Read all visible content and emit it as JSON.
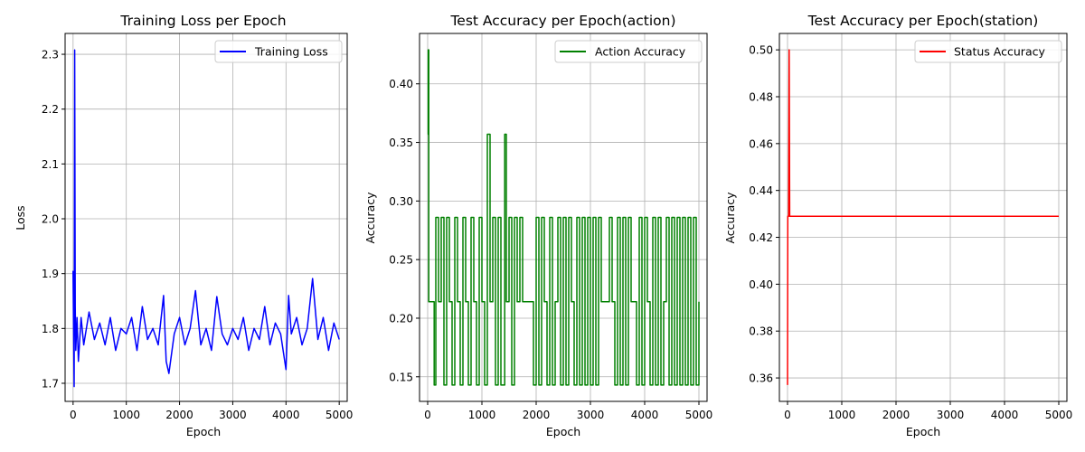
{
  "chart_data": [
    {
      "id": "loss",
      "type": "line",
      "title": "Training Loss per Epoch",
      "xlabel": "Epoch",
      "ylabel": "Loss",
      "xlim": [
        -150,
        5150
      ],
      "ylim": [
        1.667,
        2.338
      ],
      "xticks": [
        "0",
        "1000",
        "2000",
        "3000",
        "4000",
        "5000"
      ],
      "yticks": [
        "1.7",
        "1.8",
        "1.9",
        "2.0",
        "2.1",
        "2.2",
        "2.3"
      ],
      "grid": true,
      "legend_position": "top-right",
      "series": [
        {
          "name": "Training Loss",
          "color": "#0000ff",
          "points": [
            [
              0,
              1.905
            ],
            [
              10,
              1.8
            ],
            [
              20,
              1.694
            ],
            [
              30,
              2.308
            ],
            [
              40,
              1.84
            ],
            [
              50,
              1.76
            ],
            [
              75,
              1.82
            ],
            [
              100,
              1.74
            ],
            [
              150,
              1.82
            ],
            [
              200,
              1.77
            ],
            [
              300,
              1.83
            ],
            [
              400,
              1.78
            ],
            [
              500,
              1.81
            ],
            [
              600,
              1.77
            ],
            [
              700,
              1.82
            ],
            [
              800,
              1.76
            ],
            [
              900,
              1.8
            ],
            [
              1000,
              1.79
            ],
            [
              1100,
              1.82
            ],
            [
              1200,
              1.76
            ],
            [
              1300,
              1.84
            ],
            [
              1400,
              1.78
            ],
            [
              1500,
              1.8
            ],
            [
              1600,
              1.77
            ],
            [
              1700,
              1.86
            ],
            [
              1750,
              1.74
            ],
            [
              1800,
              1.718
            ],
            [
              1900,
              1.79
            ],
            [
              2000,
              1.82
            ],
            [
              2100,
              1.77
            ],
            [
              2200,
              1.8
            ],
            [
              2300,
              1.869
            ],
            [
              2400,
              1.77
            ],
            [
              2500,
              1.8
            ],
            [
              2600,
              1.76
            ],
            [
              2700,
              1.858
            ],
            [
              2800,
              1.79
            ],
            [
              2900,
              1.77
            ],
            [
              3000,
              1.8
            ],
            [
              3100,
              1.78
            ],
            [
              3200,
              1.82
            ],
            [
              3300,
              1.76
            ],
            [
              3400,
              1.8
            ],
            [
              3500,
              1.78
            ],
            [
              3600,
              1.84
            ],
            [
              3700,
              1.77
            ],
            [
              3800,
              1.81
            ],
            [
              3900,
              1.79
            ],
            [
              4000,
              1.725
            ],
            [
              4050,
              1.86
            ],
            [
              4100,
              1.79
            ],
            [
              4200,
              1.82
            ],
            [
              4300,
              1.77
            ],
            [
              4400,
              1.8
            ],
            [
              4500,
              1.891
            ],
            [
              4600,
              1.78
            ],
            [
              4700,
              1.82
            ],
            [
              4800,
              1.76
            ],
            [
              4900,
              1.81
            ],
            [
              5000,
              1.78
            ]
          ]
        }
      ]
    },
    {
      "id": "action",
      "type": "line",
      "title": "Test Accuracy per Epoch(action)",
      "xlabel": "Epoch",
      "ylabel": "Accuracy",
      "xlim": [
        -150,
        5150
      ],
      "ylim": [
        0.129,
        0.443
      ],
      "xticks": [
        "0",
        "1000",
        "2000",
        "3000",
        "4000",
        "5000"
      ],
      "yticks": [
        "0.15",
        "0.20",
        "0.25",
        "0.30",
        "0.35",
        "0.40"
      ],
      "grid": true,
      "legend_position": "top-right",
      "series": [
        {
          "name": "Action Accuracy",
          "color": "#008000",
          "points": [
            [
              0,
              0.357
            ],
            [
              10,
              0.429
            ],
            [
              20,
              0.214
            ],
            [
              50,
              0.214
            ],
            [
              100,
              0.214
            ],
            [
              120,
              0.143
            ],
            [
              150,
              0.286
            ],
            [
              200,
              0.214
            ],
            [
              250,
              0.286
            ],
            [
              300,
              0.143
            ],
            [
              350,
              0.286
            ],
            [
              400,
              0.214
            ],
            [
              450,
              0.143
            ],
            [
              500,
              0.286
            ],
            [
              550,
              0.214
            ],
            [
              600,
              0.143
            ],
            [
              650,
              0.286
            ],
            [
              700,
              0.214
            ],
            [
              750,
              0.143
            ],
            [
              800,
              0.286
            ],
            [
              850,
              0.214
            ],
            [
              900,
              0.143
            ],
            [
              950,
              0.286
            ],
            [
              1000,
              0.214
            ],
            [
              1050,
              0.143
            ],
            [
              1100,
              0.357
            ],
            [
              1150,
              0.214
            ],
            [
              1200,
              0.286
            ],
            [
              1250,
              0.143
            ],
            [
              1300,
              0.286
            ],
            [
              1350,
              0.143
            ],
            [
              1420,
              0.357
            ],
            [
              1450,
              0.214
            ],
            [
              1500,
              0.286
            ],
            [
              1550,
              0.143
            ],
            [
              1600,
              0.286
            ],
            [
              1650,
              0.214
            ],
            [
              1700,
              0.286
            ],
            [
              1750,
              0.214
            ],
            [
              1800,
              0.214
            ],
            [
              1900,
              0.214
            ],
            [
              1950,
              0.143
            ],
            [
              2000,
              0.286
            ],
            [
              2050,
              0.143
            ],
            [
              2100,
              0.286
            ],
            [
              2150,
              0.214
            ],
            [
              2200,
              0.143
            ],
            [
              2250,
              0.286
            ],
            [
              2300,
              0.143
            ],
            [
              2350,
              0.214
            ],
            [
              2400,
              0.286
            ],
            [
              2450,
              0.143
            ],
            [
              2500,
              0.286
            ],
            [
              2550,
              0.143
            ],
            [
              2600,
              0.286
            ],
            [
              2650,
              0.214
            ],
            [
              2700,
              0.143
            ],
            [
              2750,
              0.286
            ],
            [
              2800,
              0.143
            ],
            [
              2850,
              0.286
            ],
            [
              2900,
              0.143
            ],
            [
              2950,
              0.286
            ],
            [
              3000,
              0.143
            ],
            [
              3050,
              0.286
            ],
            [
              3100,
              0.143
            ],
            [
              3150,
              0.286
            ],
            [
              3200,
              0.214
            ],
            [
              3250,
              0.214
            ],
            [
              3300,
              0.214
            ],
            [
              3350,
              0.286
            ],
            [
              3400,
              0.214
            ],
            [
              3450,
              0.143
            ],
            [
              3500,
              0.286
            ],
            [
              3550,
              0.143
            ],
            [
              3600,
              0.286
            ],
            [
              3650,
              0.143
            ],
            [
              3700,
              0.286
            ],
            [
              3750,
              0.214
            ],
            [
              3800,
              0.214
            ],
            [
              3850,
              0.143
            ],
            [
              3900,
              0.286
            ],
            [
              3950,
              0.143
            ],
            [
              4000,
              0.286
            ],
            [
              4050,
              0.214
            ],
            [
              4100,
              0.143
            ],
            [
              4150,
              0.286
            ],
            [
              4200,
              0.143
            ],
            [
              4250,
              0.286
            ],
            [
              4300,
              0.143
            ],
            [
              4350,
              0.214
            ],
            [
              4400,
              0.286
            ],
            [
              4450,
              0.143
            ],
            [
              4500,
              0.286
            ],
            [
              4550,
              0.143
            ],
            [
              4600,
              0.286
            ],
            [
              4650,
              0.143
            ],
            [
              4700,
              0.286
            ],
            [
              4750,
              0.143
            ],
            [
              4800,
              0.286
            ],
            [
              4850,
              0.143
            ],
            [
              4900,
              0.286
            ],
            [
              4950,
              0.143
            ],
            [
              5000,
              0.214
            ]
          ]
        }
      ]
    },
    {
      "id": "station",
      "type": "line",
      "title": "Test Accuracy per Epoch(station)",
      "xlabel": "Epoch",
      "ylabel": "Accuracy",
      "xlim": [
        -150,
        5150
      ],
      "ylim": [
        0.35,
        0.507
      ],
      "xticks": [
        "0",
        "1000",
        "2000",
        "3000",
        "4000",
        "5000"
      ],
      "yticks": [
        "0.36",
        "0.38",
        "0.40",
        "0.42",
        "0.44",
        "0.46",
        "0.48",
        "0.50"
      ],
      "grid": true,
      "legend_position": "top-right",
      "series": [
        {
          "name": "Status Accuracy",
          "color": "#ff0000",
          "points": [
            [
              0,
              0.357
            ],
            [
              5,
              0.429
            ],
            [
              20,
              0.429
            ],
            [
              30,
              0.5
            ],
            [
              40,
              0.429
            ],
            [
              100,
              0.429
            ],
            [
              5000,
              0.429
            ]
          ]
        }
      ]
    }
  ]
}
